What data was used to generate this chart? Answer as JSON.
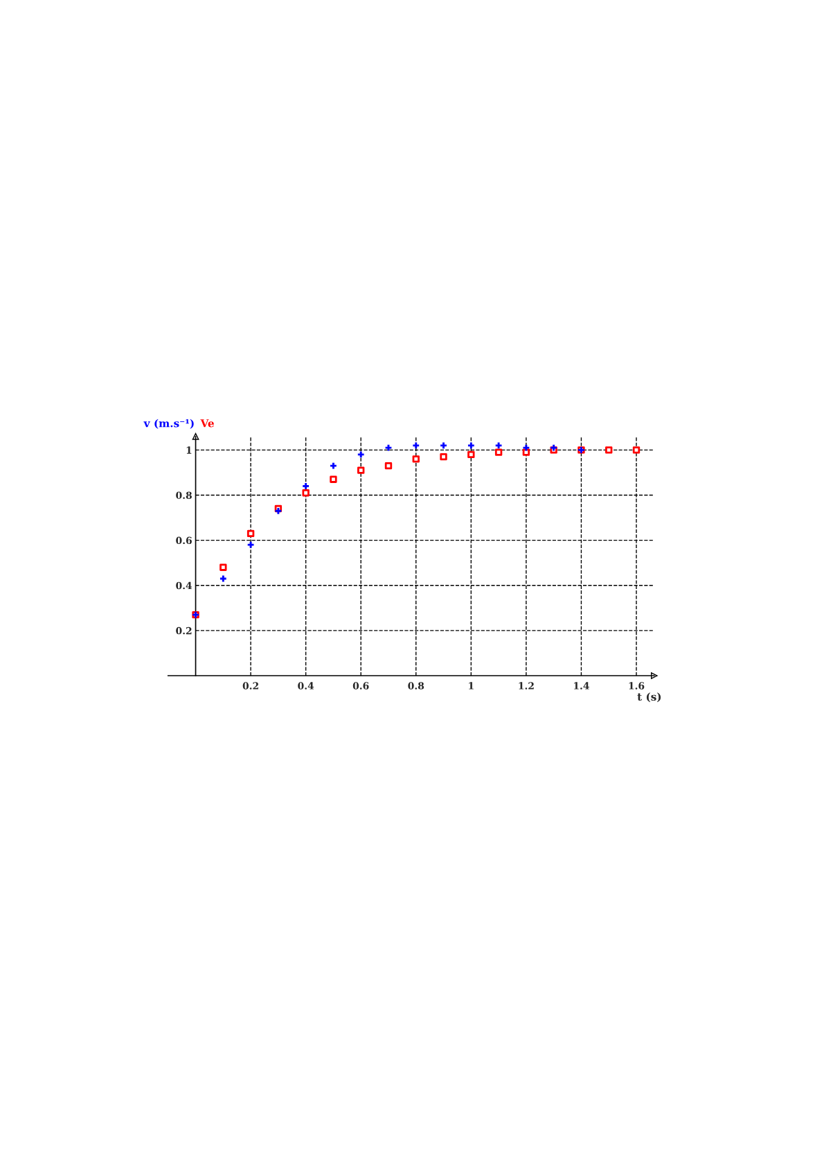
{
  "chart_data": {
    "type": "scatter",
    "xlabel": "t (s)",
    "x": [
      0,
      0.1,
      0.2,
      0.3,
      0.4,
      0.5,
      0.6,
      0.7,
      0.8,
      0.9,
      1.0,
      1.1,
      1.2,
      1.3,
      1.4,
      1.5,
      1.6
    ],
    "series": [
      {
        "name": "v (m.s⁻¹)",
        "color": "#0000ff",
        "marker": "cross",
        "values": [
          0.27,
          0.43,
          0.58,
          0.73,
          0.84,
          0.93,
          0.98,
          1.01,
          1.02,
          1.02,
          1.02,
          1.02,
          1.01,
          1.01,
          1.0,
          null,
          null
        ]
      },
      {
        "name": "Ve",
        "color": "#ff0000",
        "marker": "square",
        "values": [
          0.27,
          0.48,
          0.63,
          0.74,
          0.81,
          0.87,
          0.91,
          0.93,
          0.96,
          0.97,
          0.98,
          0.99,
          0.99,
          1.0,
          1.0,
          1.0,
          1.0
        ]
      }
    ],
    "xlim": [
      -0.1,
      1.665
    ],
    "ylim": [
      0,
      1.06
    ],
    "xticks": [
      0.2,
      0.4,
      0.6,
      0.8,
      1,
      1.2,
      1.4,
      1.6
    ],
    "yticks": [
      0.2,
      0.4,
      0.6,
      0.8,
      1
    ],
    "grid": true
  }
}
